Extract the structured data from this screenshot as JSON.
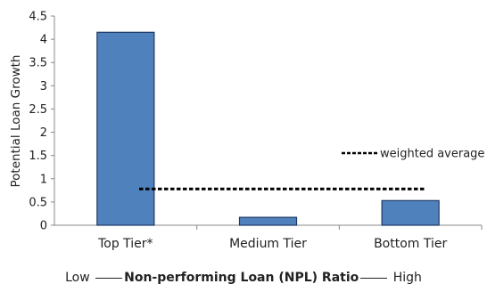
{
  "chart_data": {
    "type": "bar",
    "categories": [
      "Top Tier*",
      "Medium Tier",
      "Bottom Tier"
    ],
    "values": [
      4.15,
      0.17,
      0.53
    ],
    "reference_line": {
      "name": "weighted average",
      "value": 0.78,
      "style": "dashed",
      "color": "#000000"
    },
    "ylabel": "Potential Loan Growth",
    "xlabel": {
      "left": "Low",
      "middle": "Non-performing Loan (NPL) Ratio",
      "right": "High"
    },
    "ylim": [
      0,
      4.5
    ],
    "yticks": [
      "0",
      "0.5",
      "1",
      "1.5",
      "2",
      "2.5",
      "3",
      "3.5",
      "4",
      "4.5"
    ],
    "grid": false,
    "legend_position": "right",
    "bar_color": "#4f81bd",
    "bar_edge_color": "#1f3864"
  }
}
